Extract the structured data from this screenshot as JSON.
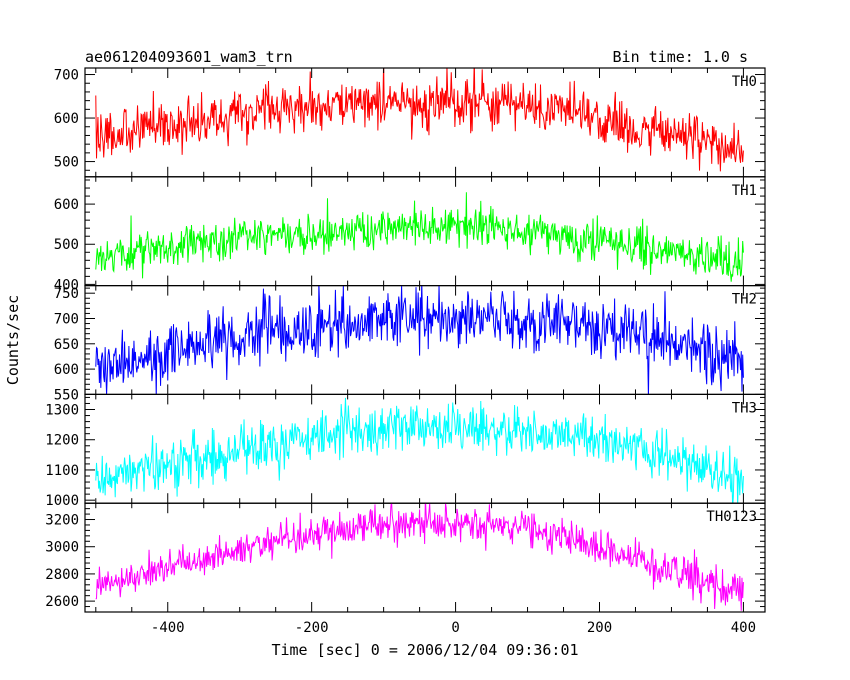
{
  "header": {
    "left_title": "ae061204093601_wam3_trn",
    "right_title": "Bin time: 1.0 s"
  },
  "chart_data": {
    "type": "line",
    "xlabel": "Time [sec] 0 = 2006/12/04 09:36:01",
    "ylabel": "Counts/sec",
    "xlim": [
      -515,
      430
    ],
    "xticks": [
      -400,
      -200,
      0,
      200,
      400
    ],
    "x_range": [
      -500,
      400
    ],
    "x_step": 1.0,
    "panels": [
      {
        "name": "TH0",
        "color": "#ff0000",
        "ylim": [
          465,
          715
        ],
        "yticks": [
          500,
          600,
          700
        ],
        "trend": [
          [
            -500,
            560
          ],
          [
            -400,
            585
          ],
          [
            -300,
            610
          ],
          [
            -200,
            628
          ],
          [
            -100,
            640
          ],
          [
            0,
            638
          ],
          [
            100,
            625
          ],
          [
            200,
            595
          ],
          [
            300,
            560
          ],
          [
            400,
            535
          ]
        ],
        "noise": 28
      },
      {
        "name": "TH1",
        "color": "#00ff00",
        "ylim": [
          397,
          668
        ],
        "yticks": [
          400,
          500,
          600
        ],
        "trend": [
          [
            -500,
            470
          ],
          [
            -400,
            495
          ],
          [
            -300,
            512
          ],
          [
            -200,
            525
          ],
          [
            -100,
            540
          ],
          [
            0,
            545
          ],
          [
            100,
            530
          ],
          [
            200,
            510
          ],
          [
            300,
            480
          ],
          [
            400,
            455
          ]
        ],
        "noise": 25
      },
      {
        "name": "TH2",
        "color": "#0000ff",
        "ylim": [
          550,
          765
        ],
        "yticks": [
          550,
          600,
          650,
          700,
          750
        ],
        "trend": [
          [
            -500,
            605
          ],
          [
            -400,
            630
          ],
          [
            -300,
            660
          ],
          [
            -200,
            685
          ],
          [
            -100,
            700
          ],
          [
            0,
            705
          ],
          [
            100,
            695
          ],
          [
            200,
            680
          ],
          [
            300,
            650
          ],
          [
            400,
            615
          ]
        ],
        "noise": 30
      },
      {
        "name": "TH3",
        "color": "#00ffff",
        "ylim": [
          990,
          1350
        ],
        "yticks": [
          1000,
          1100,
          1200,
          1300
        ],
        "trend": [
          [
            -500,
            1070
          ],
          [
            -400,
            1120
          ],
          [
            -300,
            1160
          ],
          [
            -200,
            1210
          ],
          [
            -100,
            1240
          ],
          [
            0,
            1245
          ],
          [
            100,
            1230
          ],
          [
            200,
            1200
          ],
          [
            300,
            1140
          ],
          [
            400,
            1060
          ]
        ],
        "noise": 40
      },
      {
        "name": "TH0123",
        "color": "#ff00ff",
        "ylim": [
          2520,
          3320
        ],
        "yticks": [
          2600,
          2800,
          3000,
          3200
        ],
        "trend": [
          [
            -500,
            2700
          ],
          [
            -400,
            2840
          ],
          [
            -300,
            2970
          ],
          [
            -200,
            3090
          ],
          [
            -100,
            3170
          ],
          [
            0,
            3180
          ],
          [
            100,
            3140
          ],
          [
            200,
            3000
          ],
          [
            300,
            2840
          ],
          [
            400,
            2640
          ]
        ],
        "noise": 65
      }
    ]
  }
}
